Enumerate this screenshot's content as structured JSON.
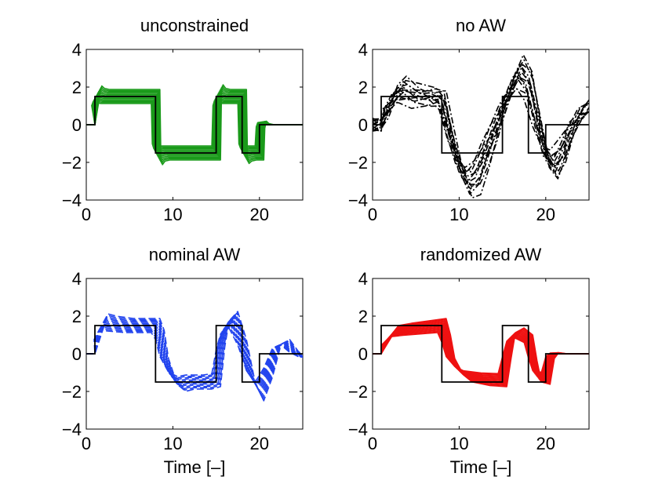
{
  "chart_data": [
    {
      "type": "line",
      "title": "unconstrained",
      "xlabel": "",
      "xlim": [
        0,
        25
      ],
      "ylim": [
        -4,
        4
      ],
      "xticks": [
        "0",
        "10",
        "20"
      ],
      "yticks": [
        "−4",
        "−2",
        "0",
        "2",
        "4"
      ],
      "grid": false,
      "reference": {
        "x": [
          0,
          1,
          1,
          8,
          8,
          15,
          15,
          18,
          18,
          20,
          20,
          25
        ],
        "y": [
          0,
          0,
          1.5,
          1.5,
          -1.5,
          -1.5,
          1.5,
          1.5,
          -1.5,
          -1.5,
          0,
          0
        ]
      },
      "series": [
        {
          "color": "#1a9a1a",
          "style": "solid",
          "variants": 12,
          "x": [
            0,
            1,
            1.12,
            1.3,
            1.6,
            2.2,
            7.9,
            8.0,
            8.12,
            8.3,
            8.6,
            9.2,
            14.9,
            15.0,
            15.12,
            15.3,
            15.6,
            16.2,
            17.9,
            18.0,
            18.12,
            18.3,
            18.6,
            19.2,
            19.9,
            20.0,
            20.12,
            20.3,
            20.6,
            21.2,
            25
          ],
          "y": [
            0,
            0,
            1.35,
            1.65,
            1.55,
            1.5,
            1.5,
            1.5,
            -1.35,
            -1.7,
            -1.55,
            -1.5,
            -1.5,
            -1.5,
            1.35,
            1.7,
            1.55,
            1.5,
            1.5,
            1.5,
            -1.35,
            -1.65,
            -1.55,
            -1.5,
            -1.5,
            -1.5,
            -0.15,
            0.15,
            0.05,
            0.0,
            0.0
          ]
        }
      ]
    },
    {
      "type": "line",
      "title": "no AW",
      "xlabel": "",
      "xlim": [
        0,
        25
      ],
      "ylim": [
        -4,
        4
      ],
      "xticks": [
        "0",
        "10",
        "20"
      ],
      "yticks": [
        "−4",
        "−2",
        "0",
        "2",
        "4"
      ],
      "grid": false,
      "reference": {
        "x": [
          0,
          1,
          1,
          8,
          8,
          15,
          15,
          18,
          18,
          20,
          20,
          25
        ],
        "y": [
          0,
          0,
          1.5,
          1.5,
          -1.5,
          -1.5,
          1.5,
          1.5,
          -1.5,
          -1.5,
          0,
          0
        ]
      },
      "series": [
        {
          "color": "#000000",
          "style": "dashdot",
          "variants": 12,
          "x": [
            0,
            1,
            1.5,
            2.5,
            3.5,
            5,
            7,
            8,
            9,
            10,
            11,
            12,
            13,
            14,
            15,
            16,
            17,
            18,
            19,
            20,
            21,
            22,
            23,
            24,
            25
          ],
          "y": [
            0,
            0,
            0.6,
            1.5,
            1.9,
            1.6,
            1.5,
            1.3,
            -0.6,
            -2.2,
            -3.0,
            -2.7,
            -1.6,
            -0.4,
            0.8,
            2.0,
            2.8,
            2.2,
            0.2,
            -1.6,
            -2.2,
            -1.4,
            -0.2,
            0.6,
            1.0
          ]
        }
      ]
    },
    {
      "type": "line",
      "title": "nominal AW",
      "xlabel": "Time [–]",
      "xlim": [
        0,
        25
      ],
      "ylim": [
        -4,
        4
      ],
      "xticks": [
        "0",
        "10",
        "20"
      ],
      "yticks": [
        "−4",
        "−2",
        "0",
        "2",
        "4"
      ],
      "grid": false,
      "reference": {
        "x": [
          0,
          1,
          1,
          8,
          8,
          15,
          15,
          18,
          18,
          20,
          20,
          25
        ],
        "y": [
          0,
          0,
          1.5,
          1.5,
          -1.5,
          -1.5,
          1.5,
          1.5,
          -1.5,
          -1.5,
          0,
          0
        ]
      },
      "series": [
        {
          "color": "#2244ee",
          "style": "dashed",
          "variants": 12,
          "x": [
            0,
            1,
            1.4,
            2,
            3,
            5,
            8,
            8.5,
            9,
            10,
            11,
            12,
            14,
            15,
            15.5,
            16,
            17,
            18,
            19,
            20,
            21,
            22,
            23,
            24,
            25
          ],
          "y": [
            0,
            0,
            1.0,
            1.7,
            1.6,
            1.5,
            1.5,
            1.0,
            -0.2,
            -1.3,
            -1.6,
            -1.5,
            -1.5,
            -1.4,
            0.3,
            1.4,
            1.8,
            0.6,
            -1.2,
            -2.0,
            -1.0,
            0.4,
            0.6,
            0.1,
            -0.2
          ]
        }
      ]
    },
    {
      "type": "line",
      "title": "randomized AW",
      "xlabel": "Time [–]",
      "xlim": [
        0,
        25
      ],
      "ylim": [
        -4,
        4
      ],
      "xticks": [
        "0",
        "10",
        "20"
      ],
      "yticks": [
        "−4",
        "−2",
        "0",
        "2",
        "4"
      ],
      "grid": false,
      "reference": {
        "x": [
          0,
          1,
          1,
          8,
          8,
          15,
          15,
          18,
          18,
          20,
          20,
          25
        ],
        "y": [
          0,
          0,
          1.5,
          1.5,
          -1.5,
          -1.5,
          1.5,
          1.5,
          -1.5,
          -1.5,
          0,
          0
        ]
      },
      "series": [
        {
          "color": "#ee1111",
          "style": "solid",
          "variants": 12,
          "x": [
            0,
            1,
            1.5,
            2.5,
            4,
            6,
            8,
            8.5,
            9,
            10,
            11,
            13,
            15,
            15.5,
            16,
            17,
            18,
            18.5,
            19,
            20,
            20.5,
            21,
            22,
            25
          ],
          "y": [
            0,
            0,
            0.6,
            1.2,
            1.3,
            1.4,
            1.5,
            0.8,
            -0.2,
            -0.9,
            -1.2,
            -1.35,
            -1.4,
            -0.2,
            0.9,
            1.1,
            0.8,
            -0.3,
            -1.2,
            -1.3,
            -0.2,
            0.05,
            0.0,
            0.0
          ]
        }
      ]
    }
  ]
}
